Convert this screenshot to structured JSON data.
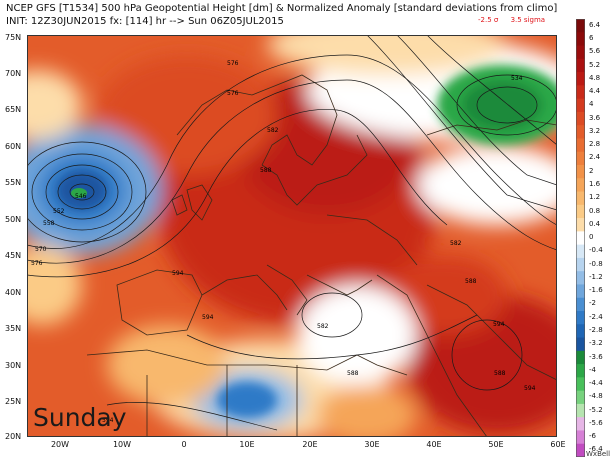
{
  "header": {
    "line1": "NCEP GFS [T1534] 500 hPa Geopotential Height [dm] & Normalized Anomaly [standard deviations from climo]",
    "line2": "INIT: 12Z30JUN2015 fx: [114] hr --> Sun 06Z05JUL2015",
    "sigma_low": "-2.5 σ",
    "sigma_high": "3.5 sigma"
  },
  "overlay_label": "Sunday",
  "lat_labels": [
    "75N",
    "70N",
    "65N",
    "60N",
    "55N",
    "50N",
    "45N",
    "40N",
    "35N",
    "30N",
    "25N",
    "20N"
  ],
  "lon_labels": [
    "20W",
    "10W",
    "0",
    "10E",
    "20E",
    "30E",
    "40E",
    "50E",
    "60E"
  ],
  "contour_labels": [
    "576",
    "576",
    "582",
    "588",
    "546",
    "552",
    "558",
    "570",
    "576",
    "594",
    "594",
    "594",
    "582",
    "588",
    "582",
    "588",
    "534",
    "594",
    "588",
    "594"
  ],
  "colorbar": {
    "labels": [
      "6.4",
      "6",
      "5.6",
      "5.2",
      "4.8",
      "4.4",
      "4",
      "3.6",
      "3.2",
      "2.8",
      "2.4",
      "2",
      "1.6",
      "1.2",
      "0.8",
      "0.4",
      "0",
      "-0.4",
      "-0.8",
      "-1.2",
      "-1.6",
      "-2",
      "-2.4",
      "-2.8",
      "-3.2",
      "-3.6",
      "-4",
      "-4.4",
      "-4.8",
      "-5.2",
      "-5.6",
      "-6",
      "-6.4"
    ],
    "colors": [
      "#7a0a0a",
      "#8b0a0a",
      "#9b0d0d",
      "#ab1111",
      "#bb1a14",
      "#c92a19",
      "#d43a1f",
      "#dc4b24",
      "#e35c2a",
      "#e96d32",
      "#ee7f3c",
      "#f29248",
      "#f5a559",
      "#f8b86d",
      "#fbcb86",
      "#fdddaa",
      "#ffffff",
      "#d7e8f6",
      "#b7d4ef",
      "#93bde6",
      "#6fa6dc",
      "#4a8fd2",
      "#2f7ac7",
      "#1f66b5",
      "#1a55a0",
      "#1b8a3a",
      "#2ca747",
      "#48c05b",
      "#77d27e",
      "#b6e4b0",
      "#e6b6e6",
      "#d680d6",
      "#c14cc1"
    ]
  },
  "credit": "WxBell"
}
